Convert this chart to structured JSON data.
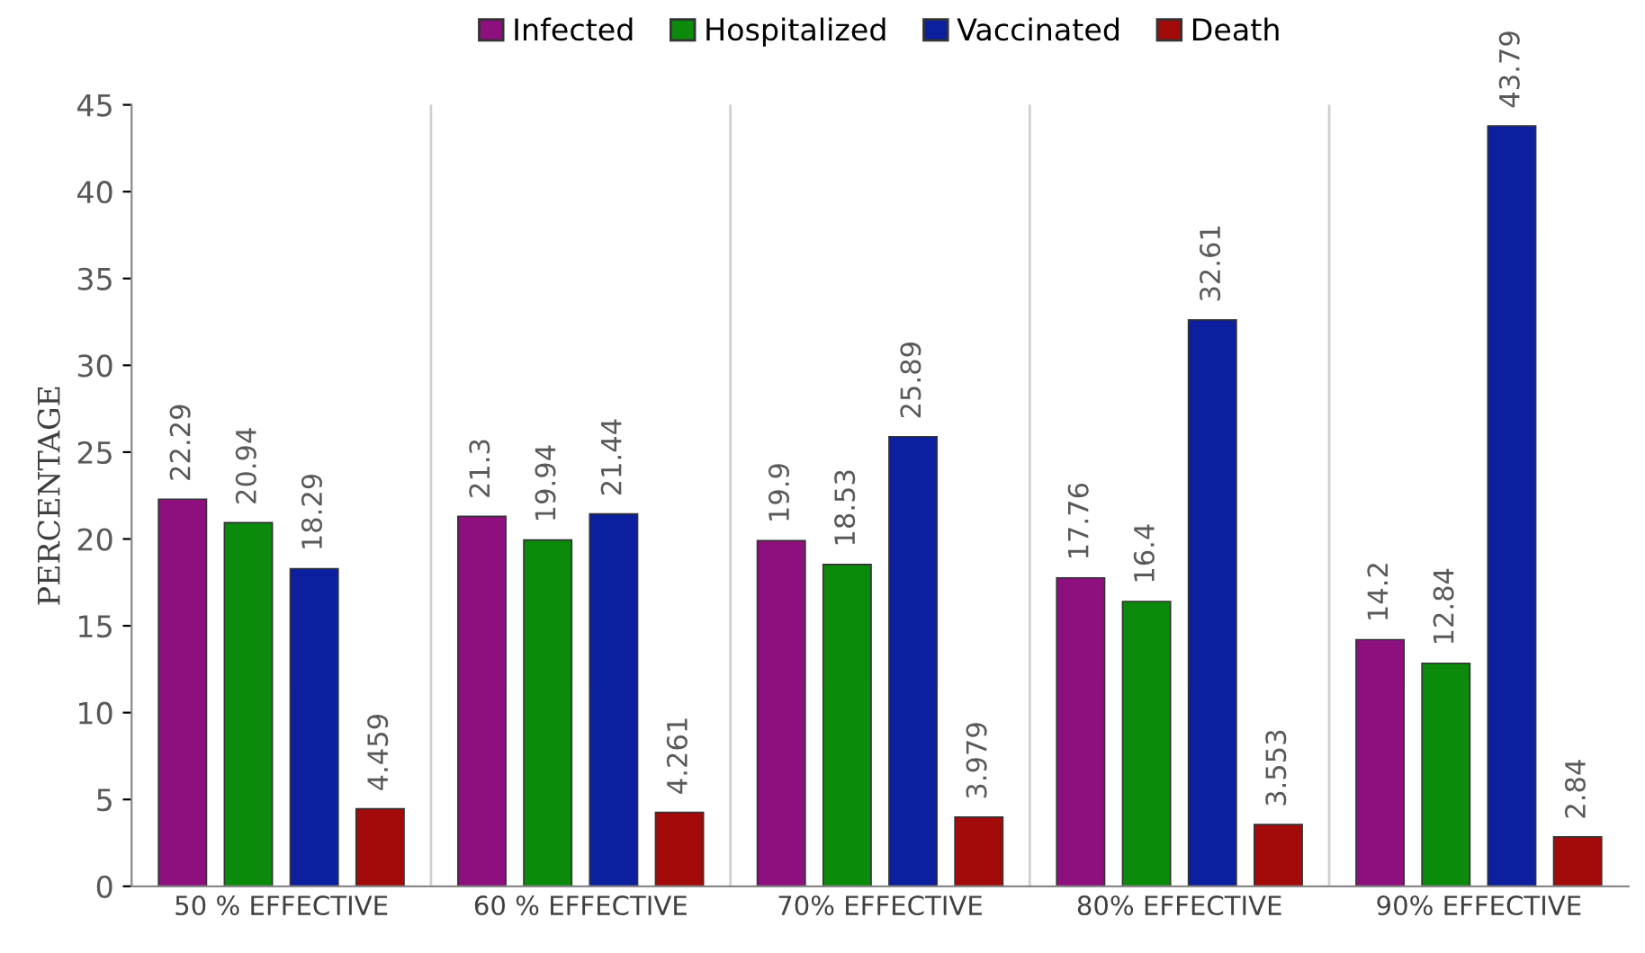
{
  "chart_data": {
    "type": "bar",
    "ylabel": "PERCENTAGE",
    "categories": [
      "50 % EFFECTIVE",
      "60 % EFFECTIVE",
      "70% EFFECTIVE",
      "80% EFFECTIVE",
      "90% EFFECTIVE"
    ],
    "series": [
      {
        "name": "Infected",
        "color": "#8e0f7e",
        "values": [
          22.29,
          21.3,
          19.9,
          17.76,
          14.2
        ]
      },
      {
        "name": "Hospitalized",
        "color": "#0b8a0b",
        "values": [
          20.94,
          19.94,
          18.53,
          16.4,
          12.84
        ]
      },
      {
        "name": "Vaccinated",
        "color": "#0c1f9e",
        "values": [
          18.29,
          21.44,
          25.89,
          32.61,
          43.79
        ]
      },
      {
        "name": "Death",
        "color": "#a30a0a",
        "values": [
          4.459,
          4.261,
          3.979,
          3.553,
          2.84
        ]
      }
    ],
    "ylim": [
      0,
      45
    ],
    "yticks": [
      0,
      5,
      10,
      15,
      20,
      25,
      30,
      35,
      40,
      45
    ],
    "grid": "x",
    "legend": "top",
    "data_labels": true
  }
}
